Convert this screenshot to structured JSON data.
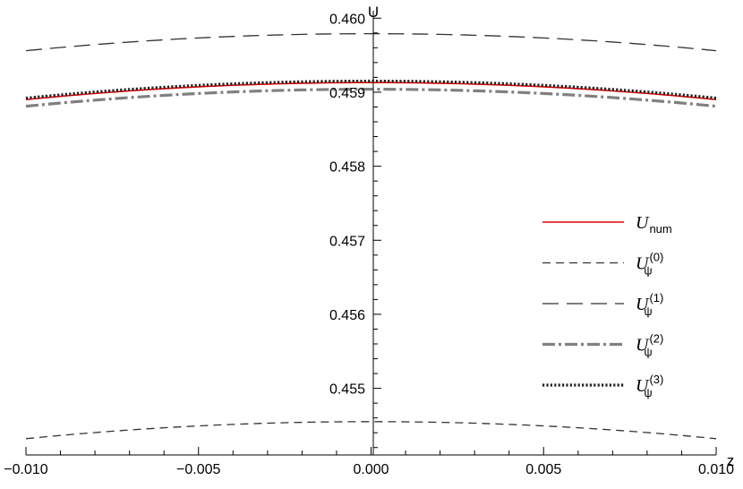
{
  "chart_data": {
    "type": "line",
    "title": "",
    "xlabel": "z",
    "ylabel": "U",
    "xlim": [
      -0.01,
      0.01
    ],
    "ylim": [
      0.4541,
      0.4601
    ],
    "x_ticks": [
      -0.01,
      -0.005,
      0.0,
      0.005,
      0.01
    ],
    "x_tick_labels": [
      "−0.010",
      "−0.005",
      "0.000",
      "0.005",
      "0.010"
    ],
    "y_ticks": [
      0.455,
      0.456,
      0.457,
      0.458,
      0.459,
      0.46
    ],
    "y_tick_labels": [
      "0.455",
      "0.456",
      "0.457",
      "0.458",
      "0.459",
      "0.460"
    ],
    "grid": false,
    "legend_position": "right",
    "series": [
      {
        "name": "U_num",
        "legend_main": "U",
        "legend_sub": "num",
        "legend_sup": "",
        "color": "#e00000",
        "style": "solid",
        "center": 0.45913,
        "curvature": 2.3
      },
      {
        "name": "U_psi^(0)",
        "legend_main": "U",
        "legend_sub": "ψ",
        "legend_sup": "(0)",
        "color": "#333333",
        "style": "dashed-short",
        "center": 0.45455,
        "curvature": 2.3
      },
      {
        "name": "U_psi^(1)",
        "legend_main": "U",
        "legend_sub": "ψ",
        "legend_sup": "(1)",
        "color": "#333333",
        "style": "dashed-long",
        "center": 0.45979,
        "curvature": 2.3
      },
      {
        "name": "U_psi^(2)",
        "legend_main": "U",
        "legend_sub": "ψ",
        "legend_sup": "(2)",
        "color": "#808080",
        "style": "dashdot",
        "center": 0.45904,
        "curvature": 2.3
      },
      {
        "name": "U_psi^(3)",
        "legend_main": "U",
        "legend_sub": "ψ",
        "legend_sup": "(3)",
        "color": "#222222",
        "style": "dotted",
        "center": 0.45915,
        "curvature": 2.3
      }
    ]
  }
}
